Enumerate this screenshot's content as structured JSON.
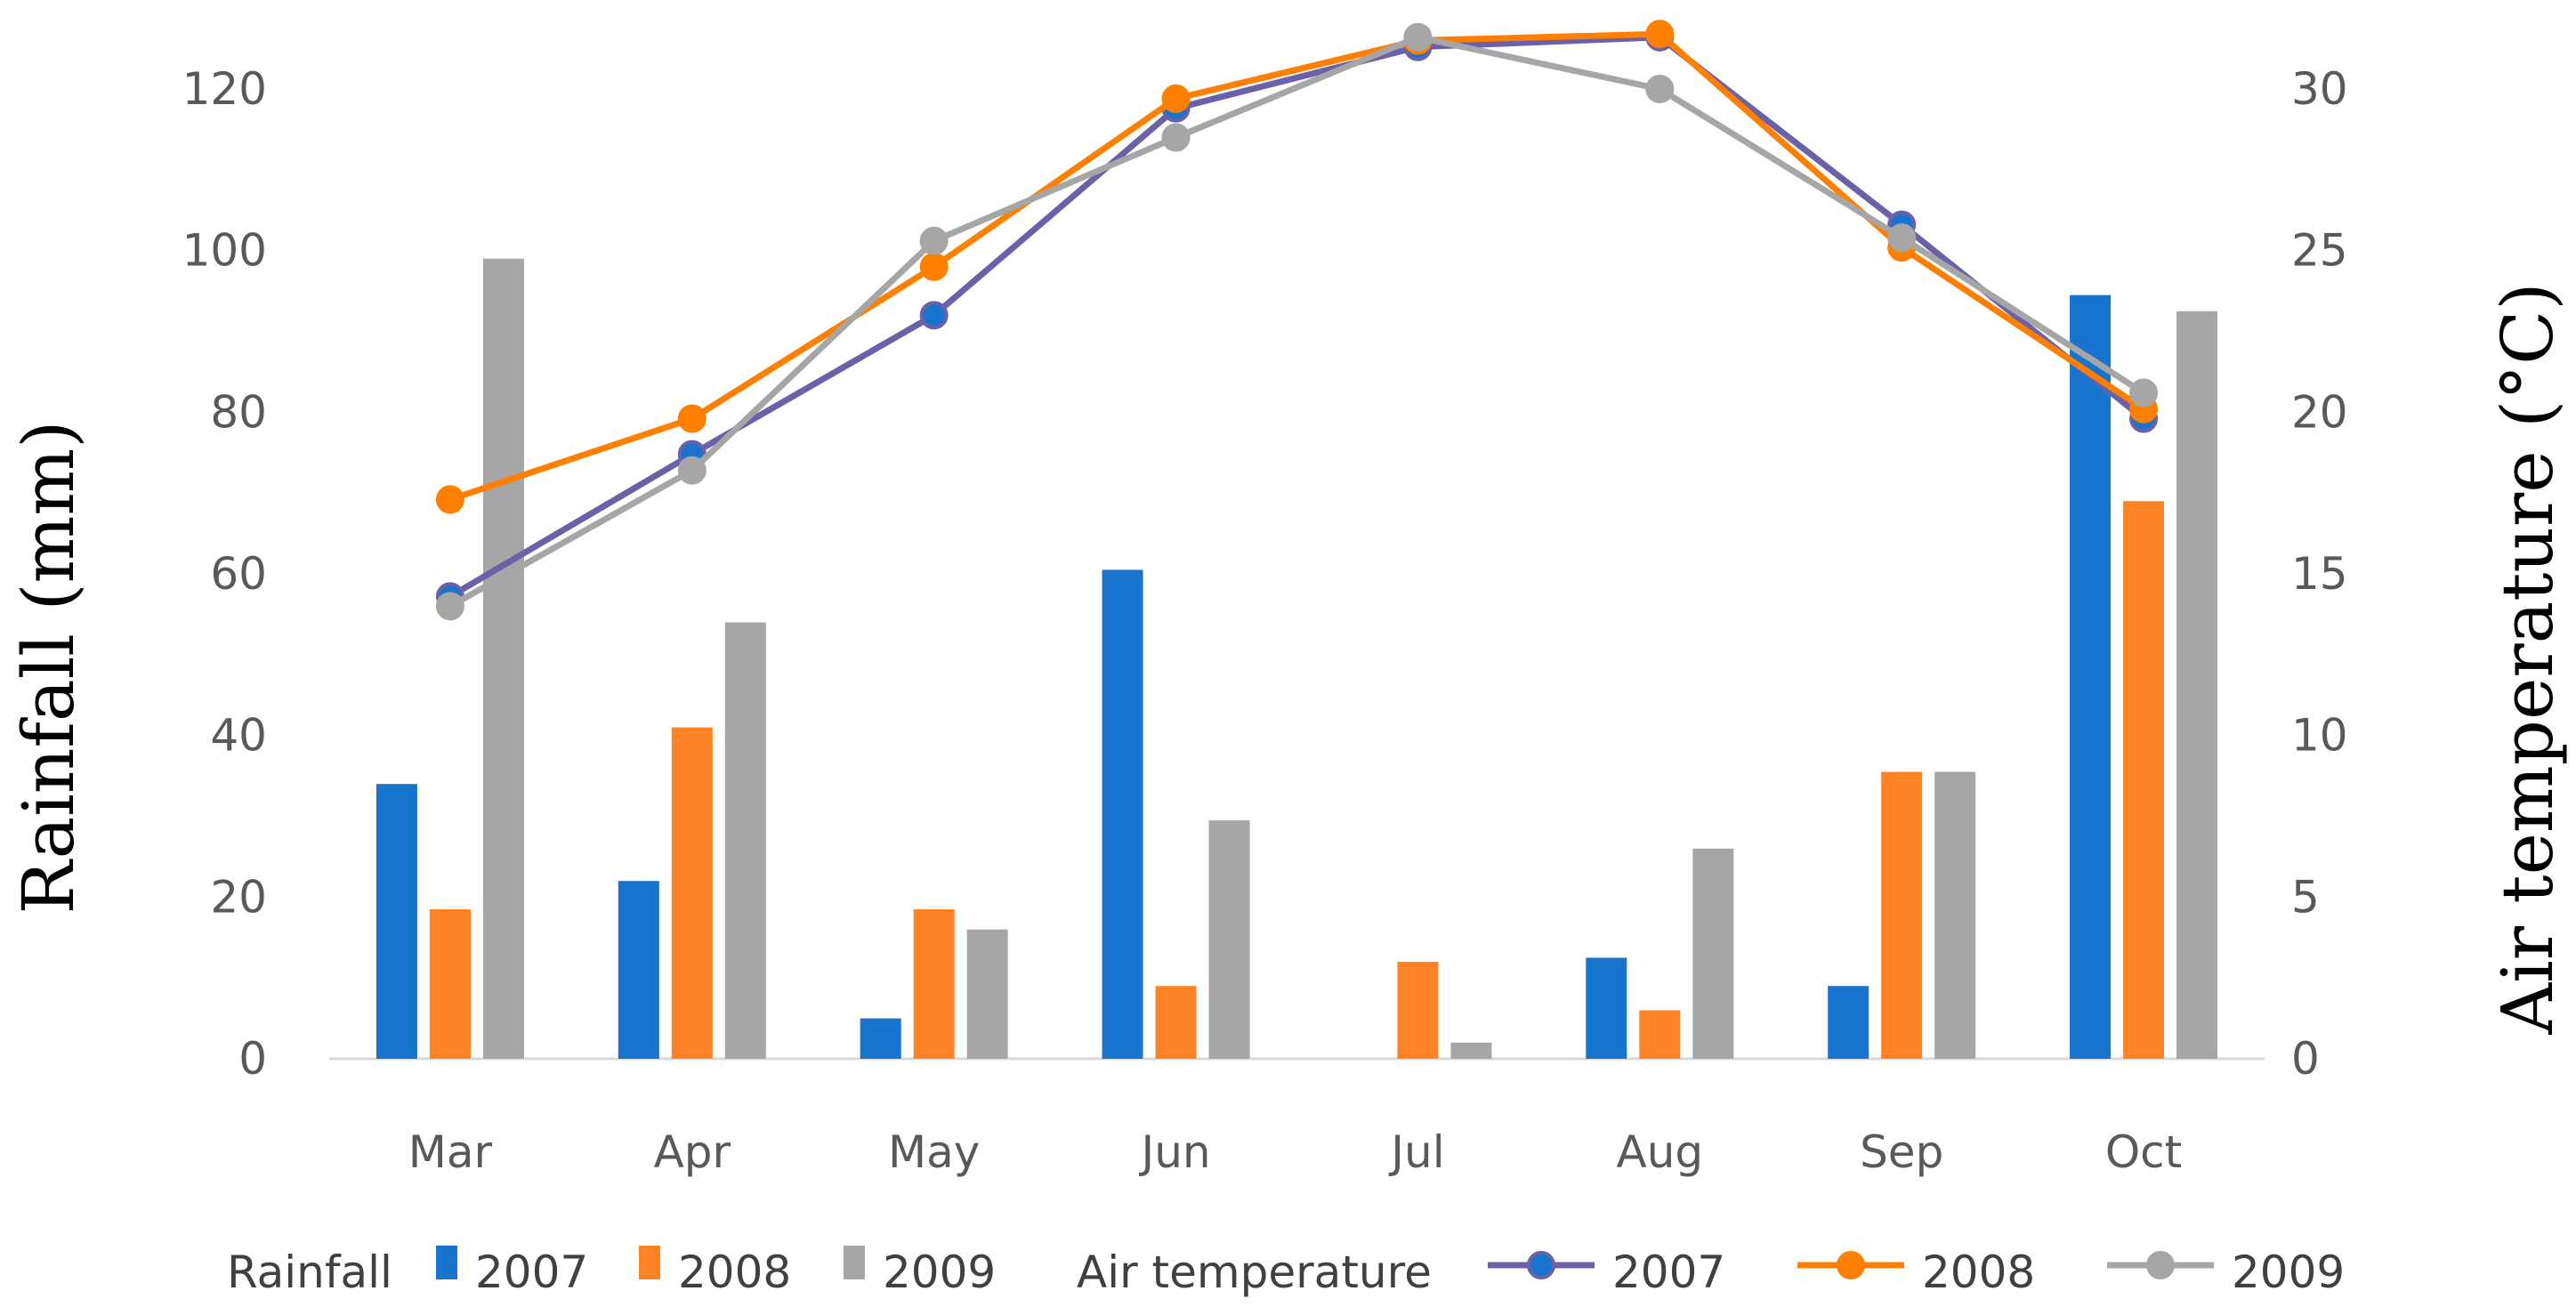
{
  "chart_data": {
    "type": "bar+line",
    "categories": [
      "Mar",
      "Apr",
      "May",
      "Jun",
      "Jul",
      "Aug",
      "Sep",
      "Oct"
    ],
    "rainfall": {
      "label": "Rainfall",
      "axis_title": "Rainfall (mm)",
      "ylim": [
        0,
        120
      ],
      "ticks": [
        "0",
        "20",
        "40",
        "60",
        "80",
        "100",
        "120"
      ],
      "series": [
        {
          "name": "2007",
          "color": "#1874CD",
          "values": [
            34,
            22,
            5,
            60.5,
            0,
            12.5,
            9,
            94.5
          ]
        },
        {
          "name": "2008",
          "color": "#FF8225",
          "values": [
            18.5,
            41,
            18.5,
            9,
            12,
            6,
            35.5,
            69
          ]
        },
        {
          "name": "2009",
          "color": "#A6A6A6",
          "values": [
            99,
            54,
            16,
            29.5,
            2,
            26,
            35.5,
            92.5
          ]
        }
      ]
    },
    "temperature": {
      "label": "Air temperature",
      "axis_title": "Air temperature (°C)",
      "ylim": [
        0,
        30
      ],
      "ticks": [
        "0",
        "5",
        "10",
        "15",
        "20",
        "25",
        "30"
      ],
      "series": [
        {
          "name": "2007",
          "color": "#6A61A8",
          "marker_color": "#1874CD",
          "values": [
            14.3,
            18.7,
            23.0,
            29.4,
            31.3,
            31.6,
            25.8,
            19.8
          ]
        },
        {
          "name": "2008",
          "color": "#FF7F00",
          "marker_color": "#FF7F00",
          "values": [
            17.3,
            19.8,
            24.5,
            29.7,
            31.5,
            31.7,
            25.1,
            20.1
          ]
        },
        {
          "name": "2009",
          "color": "#A6A6A6",
          "marker_color": "#A6A6A6",
          "values": [
            14.0,
            18.2,
            25.3,
            28.5,
            31.6,
            30.0,
            25.4,
            20.6
          ]
        }
      ]
    }
  }
}
